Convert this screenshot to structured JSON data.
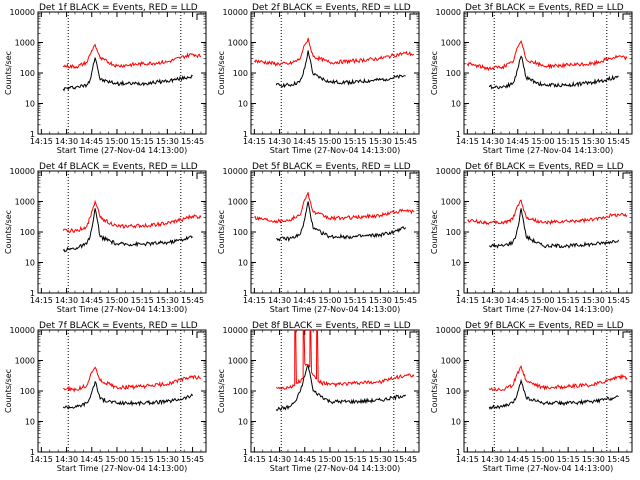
{
  "figure": {
    "layout": "3x3 grid",
    "background": "#ffffff",
    "colors": {
      "events": "#000000",
      "lld": "#ff0000",
      "axes": "#000000"
    }
  },
  "chart_data": [
    {
      "type": "line",
      "title": "Det 1f BLACK = Events, RED = LLD",
      "xlabel": "Start Time (27-Nov-04 14:13:00)",
      "ylabel": "Counts/sec",
      "x_ticks": [
        "14:15",
        "14:30",
        "14:45",
        "15:00",
        "15:15",
        "15:30",
        "15:45"
      ],
      "y_ticks": [
        "1",
        "10",
        "100",
        "1000",
        "10000"
      ],
      "ylim": [
        1,
        10000
      ],
      "y_scale": "log",
      "xlim": [
        "14:13",
        "15:53"
      ],
      "markers_dotted": [
        "14:31",
        "15:38"
      ],
      "series": [
        {
          "color": "#000000",
          "x": [
            "14:28",
            "14:36",
            "14:42",
            "14:44",
            "14:46",
            "14:47",
            "14:48",
            "14:50",
            "15:00",
            "15:15",
            "15:30",
            "15:38",
            "15:45"
          ],
          "values": [
            30,
            35,
            40,
            60,
            200,
            320,
            200,
            60,
            45,
            45,
            55,
            65,
            80
          ]
        },
        {
          "color": "#ff0000",
          "x": [
            "14:28",
            "14:36",
            "14:42",
            "14:44",
            "14:46",
            "14:47",
            "14:48",
            "14:50",
            "15:00",
            "15:15",
            "15:30",
            "15:38",
            "15:45",
            "15:50"
          ],
          "values": [
            170,
            160,
            220,
            400,
            700,
            850,
            600,
            300,
            170,
            200,
            230,
            320,
            420,
            350
          ]
        }
      ]
    },
    {
      "type": "line",
      "title": "Det 2f BLACK = Events, RED = LLD",
      "xlabel": "Start Time (27-Nov-04 14:13:00)",
      "ylabel": "Counts/sec",
      "x_ticks": [
        "14:15",
        "14:30",
        "14:45",
        "15:00",
        "15:15",
        "15:30",
        "15:45"
      ],
      "y_ticks": [
        "1",
        "10",
        "100",
        "1000",
        "10000"
      ],
      "ylim": [
        1,
        10000
      ],
      "y_scale": "log",
      "xlim": [
        "14:13",
        "15:53"
      ],
      "markers_dotted": [
        "14:31",
        "15:38"
      ],
      "series": [
        {
          "color": "#000000",
          "x": [
            "14:28",
            "14:36",
            "14:42",
            "14:44",
            "14:46",
            "14:47",
            "14:48",
            "14:50",
            "15:00",
            "15:15",
            "15:30",
            "15:38",
            "15:45"
          ],
          "values": [
            40,
            40,
            50,
            90,
            250,
            550,
            300,
            90,
            50,
            50,
            60,
            70,
            80
          ]
        },
        {
          "color": "#ff0000",
          "x": [
            "14:15",
            "14:28",
            "14:36",
            "14:42",
            "14:44",
            "14:46",
            "14:47",
            "14:48",
            "14:50",
            "15:00",
            "15:15",
            "15:30",
            "15:38",
            "15:45",
            "15:50"
          ],
          "values": [
            250,
            200,
            200,
            280,
            600,
            1000,
            1400,
            800,
            350,
            220,
            250,
            300,
            380,
            450,
            400
          ]
        }
      ]
    },
    {
      "type": "line",
      "title": "Det 3f BLACK = Events, RED = LLD",
      "xlabel": "Start Time (27-Nov-04 14:13:00)",
      "ylabel": "Counts/sec",
      "x_ticks": [
        "14:15",
        "14:30",
        "14:45",
        "15:00",
        "15:15",
        "15:30",
        "15:45"
      ],
      "y_ticks": [
        "1",
        "10",
        "100",
        "1000",
        "10000"
      ],
      "ylim": [
        1,
        10000
      ],
      "y_scale": "log",
      "xlim": [
        "14:13",
        "15:53"
      ],
      "markers_dotted": [
        "14:31",
        "15:38"
      ],
      "series": [
        {
          "color": "#000000",
          "x": [
            "14:28",
            "14:36",
            "14:42",
            "14:44",
            "14:46",
            "14:47",
            "14:48",
            "14:50",
            "15:00",
            "15:15",
            "15:30",
            "15:38",
            "15:45"
          ],
          "values": [
            35,
            35,
            45,
            80,
            250,
            350,
            230,
            70,
            40,
            40,
            50,
            60,
            80
          ]
        },
        {
          "color": "#ff0000",
          "x": [
            "14:15",
            "14:28",
            "14:36",
            "14:42",
            "14:44",
            "14:46",
            "14:47",
            "14:48",
            "14:50",
            "15:00",
            "15:15",
            "15:30",
            "15:38",
            "15:45",
            "15:50"
          ],
          "values": [
            200,
            140,
            160,
            220,
            500,
            900,
            1100,
            700,
            280,
            170,
            180,
            200,
            280,
            350,
            300
          ]
        }
      ]
    },
    {
      "type": "line",
      "title": "Det 4f BLACK = Events, RED = LLD",
      "xlabel": "Start Time (27-Nov-04 14:13:00)",
      "ylabel": "Counts/sec",
      "x_ticks": [
        "14:15",
        "14:30",
        "14:45",
        "15:00",
        "15:15",
        "15:30",
        "15:45"
      ],
      "y_ticks": [
        "1",
        "10",
        "100",
        "1000",
        "10000"
      ],
      "ylim": [
        1,
        10000
      ],
      "y_scale": "log",
      "xlim": [
        "14:13",
        "15:53"
      ],
      "markers_dotted": [
        "14:31",
        "15:38"
      ],
      "series": [
        {
          "color": "#000000",
          "x": [
            "14:28",
            "14:36",
            "14:42",
            "14:44",
            "14:46",
            "14:47",
            "14:48",
            "14:50",
            "15:00",
            "15:15",
            "15:30",
            "15:38",
            "15:45"
          ],
          "values": [
            25,
            30,
            40,
            70,
            250,
            600,
            300,
            70,
            40,
            40,
            45,
            55,
            70
          ]
        },
        {
          "color": "#ff0000",
          "x": [
            "14:28",
            "14:36",
            "14:42",
            "14:44",
            "14:46",
            "14:47",
            "14:48",
            "14:50",
            "15:00",
            "15:15",
            "15:30",
            "15:38",
            "15:45",
            "15:50"
          ],
          "values": [
            110,
            110,
            150,
            300,
            700,
            1000,
            700,
            300,
            150,
            160,
            190,
            250,
            330,
            300
          ]
        }
      ]
    },
    {
      "type": "line",
      "title": "Det 5f BLACK = Events, RED = LLD",
      "xlabel": "Start Time (27-Nov-04 14:13:00)",
      "ylabel": "Counts/sec",
      "x_ticks": [
        "14:15",
        "14:30",
        "14:45",
        "15:00",
        "15:15",
        "15:30",
        "15:45"
      ],
      "y_ticks": [
        "1",
        "10",
        "100",
        "1000",
        "10000"
      ],
      "ylim": [
        1,
        10000
      ],
      "y_scale": "log",
      "xlim": [
        "14:13",
        "15:53"
      ],
      "markers_dotted": [
        "14:31",
        "15:38"
      ],
      "series": [
        {
          "color": "#000000",
          "x": [
            "14:28",
            "14:36",
            "14:42",
            "14:44",
            "14:46",
            "14:47",
            "14:48",
            "14:50",
            "15:00",
            "15:15",
            "15:30",
            "15:38",
            "15:45"
          ],
          "values": [
            60,
            60,
            80,
            150,
            500,
            1000,
            500,
            130,
            70,
            70,
            80,
            100,
            140
          ]
        },
        {
          "color": "#ff0000",
          "x": [
            "14:15",
            "14:28",
            "14:36",
            "14:42",
            "14:44",
            "14:46",
            "14:47",
            "14:48",
            "14:50",
            "15:00",
            "15:15",
            "15:30",
            "15:38",
            "15:45",
            "15:50"
          ],
          "values": [
            300,
            230,
            250,
            350,
            800,
            1500,
            2000,
            1100,
            450,
            280,
            300,
            350,
            450,
            500,
            450
          ]
        }
      ]
    },
    {
      "type": "line",
      "title": "Det 6f BLACK = Events, RED = LLD",
      "xlabel": "Start Time (27-Nov-04 14:13:00)",
      "ylabel": "Counts/sec",
      "x_ticks": [
        "14:15",
        "14:30",
        "14:45",
        "15:00",
        "15:15",
        "15:30",
        "15:45"
      ],
      "y_ticks": [
        "1",
        "10",
        "100",
        "1000",
        "10000"
      ],
      "ylim": [
        1,
        10000
      ],
      "y_scale": "log",
      "xlim": [
        "14:13",
        "15:53"
      ],
      "markers_dotted": [
        "14:31",
        "15:38"
      ],
      "series": [
        {
          "color": "#000000",
          "x": [
            "14:28",
            "14:36",
            "14:42",
            "14:44",
            "14:46",
            "14:47",
            "14:48",
            "14:50",
            "15:00",
            "15:15",
            "15:30",
            "15:38",
            "15:45"
          ],
          "values": [
            35,
            35,
            45,
            80,
            250,
            600,
            300,
            70,
            35,
            35,
            40,
            45,
            55
          ]
        },
        {
          "color": "#ff0000",
          "x": [
            "14:15",
            "14:28",
            "14:36",
            "14:42",
            "14:44",
            "14:46",
            "14:47",
            "14:48",
            "14:50",
            "15:00",
            "15:15",
            "15:30",
            "15:38",
            "15:45",
            "15:50"
          ],
          "values": [
            240,
            200,
            200,
            260,
            550,
            900,
            1100,
            700,
            300,
            200,
            220,
            250,
            330,
            380,
            350
          ]
        }
      ]
    },
    {
      "type": "line",
      "title": "Det 7f BLACK = Events, RED = LLD",
      "xlabel": "Start Time (27-Nov-04 14:13:00)",
      "ylabel": "Counts/sec",
      "x_ticks": [
        "14:15",
        "14:30",
        "14:45",
        "15:00",
        "15:15",
        "15:30",
        "15:45"
      ],
      "y_ticks": [
        "1",
        "10",
        "100",
        "1000",
        "10000"
      ],
      "ylim": [
        1,
        10000
      ],
      "y_scale": "log",
      "xlim": [
        "14:13",
        "15:53"
      ],
      "markers_dotted": [
        "14:31",
        "15:38"
      ],
      "series": [
        {
          "color": "#000000",
          "x": [
            "14:28",
            "14:36",
            "14:42",
            "14:44",
            "14:46",
            "14:47",
            "14:48",
            "14:50",
            "15:00",
            "15:15",
            "15:30",
            "15:38",
            "15:45"
          ],
          "values": [
            30,
            30,
            40,
            60,
            140,
            200,
            140,
            55,
            40,
            40,
            45,
            55,
            70
          ]
        },
        {
          "color": "#ff0000",
          "x": [
            "14:28",
            "14:36",
            "14:42",
            "14:44",
            "14:46",
            "14:47",
            "14:48",
            "14:50",
            "15:00",
            "15:15",
            "15:30",
            "15:38",
            "15:45",
            "15:50"
          ],
          "values": [
            120,
            110,
            150,
            300,
            500,
            600,
            450,
            220,
            130,
            140,
            170,
            230,
            300,
            260
          ]
        }
      ]
    },
    {
      "type": "line",
      "title": "Det 8f BLACK = Events, RED = LLD",
      "xlabel": "Start Time (27-Nov-04 14:13:00)",
      "ylabel": "Counts/sec",
      "x_ticks": [
        "14:15",
        "14:30",
        "14:45",
        "15:00",
        "15:15",
        "15:30",
        "15:45"
      ],
      "y_ticks": [
        "1",
        "10",
        "100",
        "1000",
        "10000"
      ],
      "ylim": [
        1,
        10000
      ],
      "y_scale": "log",
      "xlim": [
        "14:13",
        "15:53"
      ],
      "markers_dotted": [
        "14:31",
        "15:38"
      ],
      "series": [
        {
          "color": "#000000",
          "x": [
            "14:28",
            "14:36",
            "14:40",
            "14:42",
            "14:44",
            "14:46",
            "14:47",
            "14:48",
            "14:50",
            "15:00",
            "15:15",
            "15:30",
            "15:38",
            "15:45"
          ],
          "values": [
            25,
            30,
            50,
            90,
            200,
            500,
            700,
            400,
            100,
            45,
            45,
            50,
            60,
            75
          ]
        },
        {
          "color": "#ff0000",
          "x": [
            "14:28",
            "14:36",
            "14:39",
            "14:39.1",
            "14:39.6",
            "14:40",
            "14:44",
            "14:44.1",
            "14:44.6",
            "14:45",
            "14:48",
            "14:48.1",
            "14:48.6",
            "14:49",
            "14:52",
            "14:52.1",
            "14:52.6",
            "14:53",
            "15:00",
            "15:15",
            "15:30",
            "15:38",
            "15:45",
            "15:50"
          ],
          "values": [
            130,
            130,
            150,
            10000,
            10000,
            180,
            250,
            10000,
            10000,
            800,
            600,
            10000,
            10000,
            400,
            250,
            10000,
            10000,
            200,
            160,
            180,
            200,
            260,
            330,
            300
          ]
        }
      ]
    },
    {
      "type": "line",
      "title": "Det 9f BLACK = Events, RED = LLD",
      "xlabel": "Start Time (27-Nov-04 14:13:00)",
      "ylabel": "Counts/sec",
      "x_ticks": [
        "14:15",
        "14:30",
        "14:45",
        "15:00",
        "15:15",
        "15:30",
        "15:45"
      ],
      "y_ticks": [
        "1",
        "10",
        "100",
        "1000",
        "10000"
      ],
      "ylim": [
        1,
        10000
      ],
      "y_scale": "log",
      "xlim": [
        "14:13",
        "15:53"
      ],
      "markers_dotted": [
        "14:31",
        "15:38"
      ],
      "series": [
        {
          "color": "#000000",
          "x": [
            "14:28",
            "14:36",
            "14:42",
            "14:44",
            "14:46",
            "14:47",
            "14:48",
            "14:50",
            "15:00",
            "15:15",
            "15:30",
            "15:38",
            "15:45"
          ],
          "values": [
            30,
            30,
            40,
            60,
            150,
            220,
            150,
            60,
            40,
            40,
            45,
            55,
            65
          ]
        },
        {
          "color": "#ff0000",
          "x": [
            "14:28",
            "14:36",
            "14:42",
            "14:44",
            "14:46",
            "14:47",
            "14:48",
            "14:50",
            "15:00",
            "15:15",
            "15:30",
            "15:38",
            "15:45",
            "15:50"
          ],
          "values": [
            120,
            110,
            150,
            300,
            500,
            650,
            450,
            220,
            130,
            140,
            160,
            220,
            300,
            270
          ]
        }
      ]
    }
  ]
}
